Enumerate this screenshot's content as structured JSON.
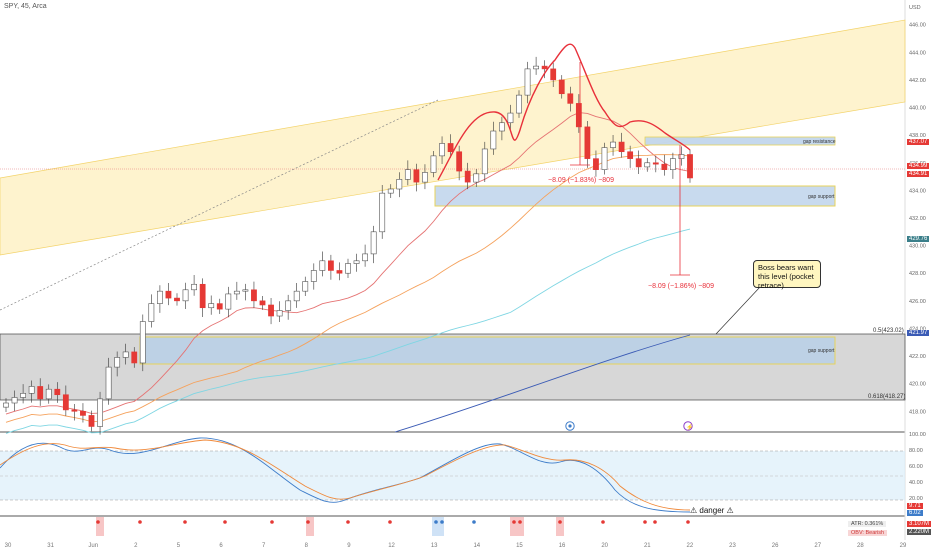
{
  "header": {
    "title": "SPY, 45, Arca"
  },
  "y_axis": {
    "unit": "USD",
    "ticks": [
      "446.00",
      "444.00",
      "442.00",
      "440.00",
      "438.00",
      "436.00",
      "434.00",
      "432.00",
      "430.00",
      "428.00",
      "426.00",
      "424.00",
      "422.00",
      "420.00",
      "418.00"
    ],
    "price_tags": {
      "resistance": "437.07",
      "current": "434.99",
      "current2": "434.91",
      "ma": "429.76",
      "level": "421.97"
    }
  },
  "x_axis": {
    "labels": [
      "30",
      "31",
      "Jun",
      "2",
      "5",
      "6",
      "7",
      "8",
      "9",
      "12",
      "13",
      "14",
      "15",
      "16",
      "20",
      "21",
      "22",
      "23",
      "26",
      "27",
      "28",
      "29"
    ]
  },
  "zones": {
    "gap_resistance": "gap resistance",
    "gap_support_upper": "gap support",
    "gap_support_lower": "gap support"
  },
  "measurements": {
    "m1": "−8.09 (−1.83%) −809",
    "m2": "−8.09 (−1.86%) −809"
  },
  "fib": {
    "f05": "0.5(423.02)",
    "f618": "0.618(418.27)"
  },
  "callout": {
    "text": "Boss bears want this level (pocket retrace)"
  },
  "oscillator": {
    "ticks": [
      "100.00",
      "80.00",
      "60.00",
      "40.00",
      "20.00",
      "0.00"
    ],
    "tag1": "9.71",
    "tag2": "6.02",
    "danger": "⚠ danger ⚠"
  },
  "indicator": {
    "atr": "ATR: 0.361%",
    "signal": "OBV: Bearish",
    "tag1": "3.107M",
    "tag2": "2.220M"
  },
  "colors": {
    "up": "#ffffff",
    "down": "#e53935",
    "wick": "#333333",
    "channel": "#fde8a0",
    "gap": "#bcd3ea",
    "fib_zone": "#cfcfcf",
    "red_curve": "#e8303a",
    "ma_fast": "#e57373",
    "ma_mid": "#f5a25d",
    "ma_slow": "#7fd6e3",
    "ma_long": "#3b5bb5",
    "stoch_k": "#3d7cc9",
    "stoch_d": "#f0893a"
  },
  "chart_data": {
    "type": "candlestick",
    "symbol": "SPY",
    "timeframe": "45",
    "ylim": [
      416.5,
      447.5
    ],
    "approx_closes": [
      418.6,
      419.0,
      419.3,
      419.8,
      418.9,
      419.6,
      419.2,
      418.1,
      418.0,
      417.7,
      416.9,
      418.9,
      421.2,
      421.9,
      422.3,
      421.5,
      424.5,
      425.8,
      426.7,
      426.2,
      426.0,
      426.8,
      427.2,
      425.5,
      425.8,
      425.4,
      426.5,
      426.7,
      426.8,
      426.0,
      425.7,
      424.9,
      425.3,
      426.0,
      426.7,
      427.4,
      428.2,
      428.9,
      428.2,
      428.0,
      428.7,
      428.9,
      429.4,
      431.0,
      433.8,
      434.1,
      434.8,
      435.5,
      434.6,
      435.3,
      436.5,
      437.4,
      436.8,
      435.4,
      434.6,
      435.2,
      437.0,
      438.3,
      438.9,
      439.6,
      440.9,
      442.8,
      443.0,
      442.8,
      442.0,
      441.0,
      440.3,
      438.6,
      436.3,
      435.5,
      437.1,
      437.5,
      436.8,
      436.3,
      435.7,
      436.0,
      435.9,
      435.5,
      436.3,
      436.6,
      434.9
    ]
  }
}
